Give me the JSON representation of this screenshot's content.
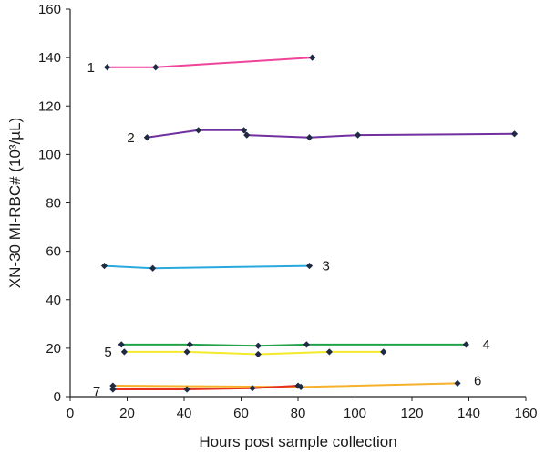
{
  "chart_data": {
    "type": "line",
    "xlabel": "Hours post sample collection",
    "ylabel": "XN-30 MI-RBC# (10³/µL)",
    "xlim": [
      0,
      160
    ],
    "ylim": [
      0,
      160
    ],
    "x_ticks": [
      0,
      20,
      40,
      60,
      80,
      100,
      120,
      140,
      160
    ],
    "y_ticks": [
      0,
      20,
      40,
      60,
      80,
      100,
      120,
      140,
      160
    ],
    "grid": false,
    "legend": "none",
    "series": [
      {
        "name": "1",
        "color": "#f0449a",
        "x": [
          13,
          30,
          85
        ],
        "y": [
          136,
          136,
          140
        ]
      },
      {
        "name": "2",
        "color": "#7030a0",
        "x": [
          27,
          45,
          61,
          62,
          84,
          101,
          156
        ],
        "y": [
          107,
          110,
          110,
          108,
          107,
          108,
          108.5
        ]
      },
      {
        "name": "3",
        "color": "#29a8e0",
        "x": [
          12,
          29,
          84
        ],
        "y": [
          54,
          53,
          54
        ]
      },
      {
        "name": "4",
        "color": "#22a34a",
        "x": [
          18,
          42,
          66,
          83,
          139
        ],
        "y": [
          21.5,
          21.5,
          21,
          21.5,
          21.5
        ]
      },
      {
        "name": "5",
        "color": "#f2ea2a",
        "x": [
          19,
          41,
          66,
          91,
          110
        ],
        "y": [
          18.5,
          18.5,
          17.5,
          18.5,
          18.5
        ]
      },
      {
        "name": "6",
        "color": "#f7b02c",
        "x": [
          15,
          81,
          136
        ],
        "y": [
          4.5,
          4,
          5.5
        ]
      },
      {
        "name": "7",
        "color": "#e53022",
        "x": [
          15,
          41,
          64,
          80
        ],
        "y": [
          3,
          3,
          3.5,
          4.5
        ]
      }
    ]
  }
}
